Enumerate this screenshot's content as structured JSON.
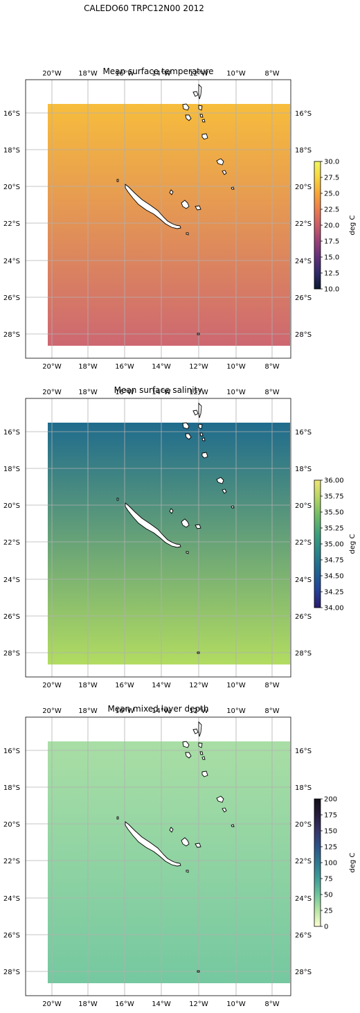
{
  "figure": {
    "suptitle": "CALEDO60 TRPC12N00 2012"
  },
  "map": {
    "lon_ticks": [
      "20°W",
      "18°W",
      "16°W",
      "14°W",
      "12°W",
      "10°W",
      "8°W"
    ],
    "lat_ticks": [
      "16°S",
      "18°S",
      "20°S",
      "22°S",
      "24°S",
      "26°S",
      "28°S"
    ],
    "gridline_color": "#b0b0b0",
    "land_color": "#ffffff",
    "coast_color": "#000000"
  },
  "panels": [
    {
      "title": "Mean surface temperature",
      "colorbar": {
        "label": "deg C",
        "range": [
          10,
          30
        ],
        "ticks": [
          "10.0",
          "12.5",
          "15.0",
          "17.5",
          "20.0",
          "22.5",
          "25.0",
          "27.5",
          "30.0"
        ],
        "colormap": [
          "#0b1a2f",
          "#2f2a6a",
          "#63307a",
          "#9a3f78",
          "#cc5c67",
          "#ec7d4c",
          "#f9a634",
          "#f8d63d",
          "#f2f65e"
        ]
      },
      "field": {
        "top_color": "#f7bd3c",
        "bottom_color": "#cd6771"
      }
    },
    {
      "title": "Mean surface salinity",
      "colorbar": {
        "label": "deg C",
        "range": [
          34,
          36
        ],
        "ticks": [
          "34.00",
          "34.25",
          "34.50",
          "34.75",
          "35.00",
          "35.25",
          "35.50",
          "35.75",
          "36.00"
        ],
        "colormap": [
          "#281b6e",
          "#24439a",
          "#1f6492",
          "#28838a",
          "#3a9f7d",
          "#6cba67",
          "#b3d463",
          "#f0e575"
        ]
      },
      "field": {
        "top_color": "#1f6b8d",
        "bottom_color": "#b2dc61"
      }
    },
    {
      "title": "Mean mixed layer depth",
      "colorbar": {
        "label": "deg C",
        "range": [
          0,
          200
        ],
        "ticks": [
          "0",
          "25",
          "50",
          "75",
          "100",
          "125",
          "150",
          "175",
          "200"
        ],
        "colormap": [
          "#fdfed0",
          "#b8e5a6",
          "#6ec49c",
          "#3e9d99",
          "#2f7891",
          "#2c5389",
          "#363468",
          "#261c3c",
          "#111019"
        ]
      },
      "field": {
        "top_color": "#a9dea5",
        "bottom_color": "#75c8a0"
      }
    }
  ]
}
